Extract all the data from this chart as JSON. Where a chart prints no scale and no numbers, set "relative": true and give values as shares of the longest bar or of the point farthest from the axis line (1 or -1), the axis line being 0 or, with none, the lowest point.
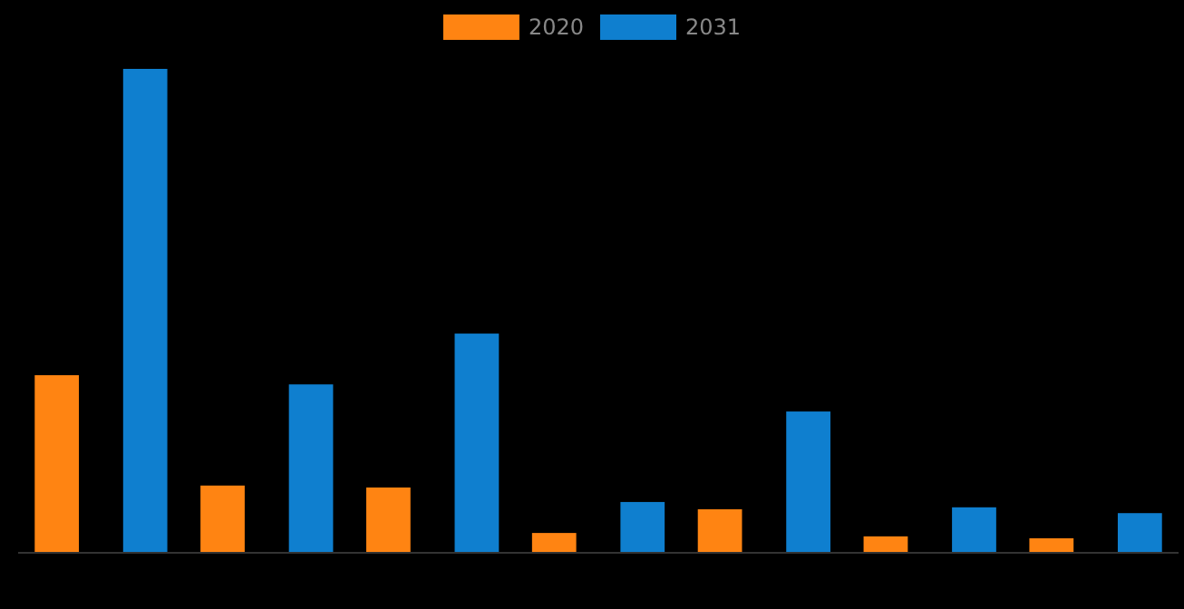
{
  "chart_data": {
    "type": "bar",
    "relative": true,
    "legend": "top",
    "categories": [
      null,
      null,
      null,
      null,
      null,
      null,
      null
    ],
    "series": [
      {
        "name": "2020",
        "color": "#ff8412",
        "values": [
          0.367,
          0.139,
          0.135,
          0.041,
          0.09,
          0.034,
          0.03
        ]
      },
      {
        "name": "2031",
        "color": "#0f7fcf",
        "values": [
          1,
          0.348,
          0.453,
          0.105,
          0.292,
          0.094,
          0.082
        ]
      }
    ]
  }
}
